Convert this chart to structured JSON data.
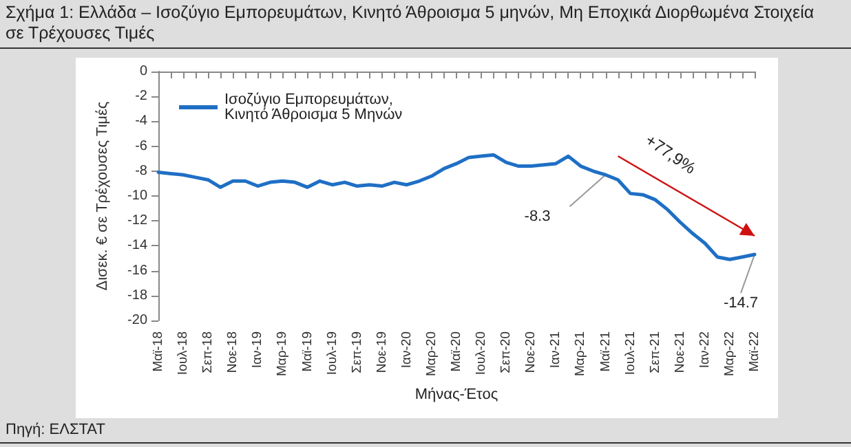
{
  "chart_data": {
    "type": "line",
    "title": "Σχήμα 1: Ελλάδα – Ισοζύγιο Εμπορευμάτων, Κινητό Άθροισμα 5 μηνών, Μη Εποχικά Διορθωμένα Στοιχεία σε Τρέχουσες Τιμές",
    "xlabel": "Μήνας-Έτος",
    "ylabel": "Δισεκ. € σε Τρέχουσες Τιμές",
    "categories": [
      "Μαϊ-18",
      null,
      "Ιουλ-18",
      null,
      "Σεπ-18",
      null,
      "Νοε-18",
      null,
      "Ιαν-19",
      null,
      "Μαρ-19",
      null,
      "Μαϊ-19",
      null,
      "Ιουλ-19",
      null,
      "Σεπ-19",
      null,
      "Νοε-19",
      null,
      "Ιαν-20",
      null,
      "Μαρ-20",
      null,
      "Μαϊ-20",
      null,
      "Ιουλ-20",
      null,
      "Σεπ-20",
      null,
      "Νοε-20",
      null,
      "Ιαν-21",
      null,
      "Μαρ-21",
      null,
      "Μαϊ-21",
      null,
      "Ιουλ-21",
      null,
      "Σεπ-21",
      null,
      "Νοε-21",
      null,
      "Ιαν-22",
      null,
      "Μαρ-22",
      null,
      "Μαϊ-22"
    ],
    "series": [
      {
        "name": "Ισοζύγιο Εμπορευμάτων,\nΚινητό Άθροισμα 5 Μηνών",
        "color": "#1f6fc5",
        "values": [
          -8.1,
          -8.2,
          -8.3,
          -8.5,
          -8.7,
          -9.3,
          -8.8,
          -8.8,
          -9.2,
          -8.9,
          -8.8,
          -8.9,
          -9.3,
          -8.8,
          -9.1,
          -8.9,
          -9.2,
          -9.1,
          -9.2,
          -8.9,
          -9.1,
          -8.8,
          -8.4,
          -7.8,
          -7.4,
          -6.9,
          -6.8,
          -6.7,
          -7.3,
          -7.6,
          -7.6,
          -7.5,
          -7.4,
          -6.8,
          -7.6,
          -8.0,
          -8.3,
          -8.7,
          -9.8,
          -9.9,
          -10.3,
          -11.1,
          -12.1,
          -13.0,
          -13.8,
          -14.9,
          -15.1,
          -14.9,
          -14.7
        ]
      }
    ],
    "ylim": [
      -20,
      0
    ],
    "yticks": [
      0,
      -2,
      -4,
      -6,
      -8,
      -10,
      -12,
      -14,
      -16,
      -18,
      -20
    ],
    "grid": false,
    "legend": "top left",
    "marker": "none",
    "line_style": "solid",
    "annotations": [
      {
        "text": "-8.3",
        "x": "Μαϊ-21",
        "y": -8.3
      },
      {
        "text": "-14.7",
        "x": "Μαϊ-22",
        "y": -14.7
      },
      "+77,9%",
      "Πηγή: ΕΛΣΤΑΤ"
    ]
  }
}
